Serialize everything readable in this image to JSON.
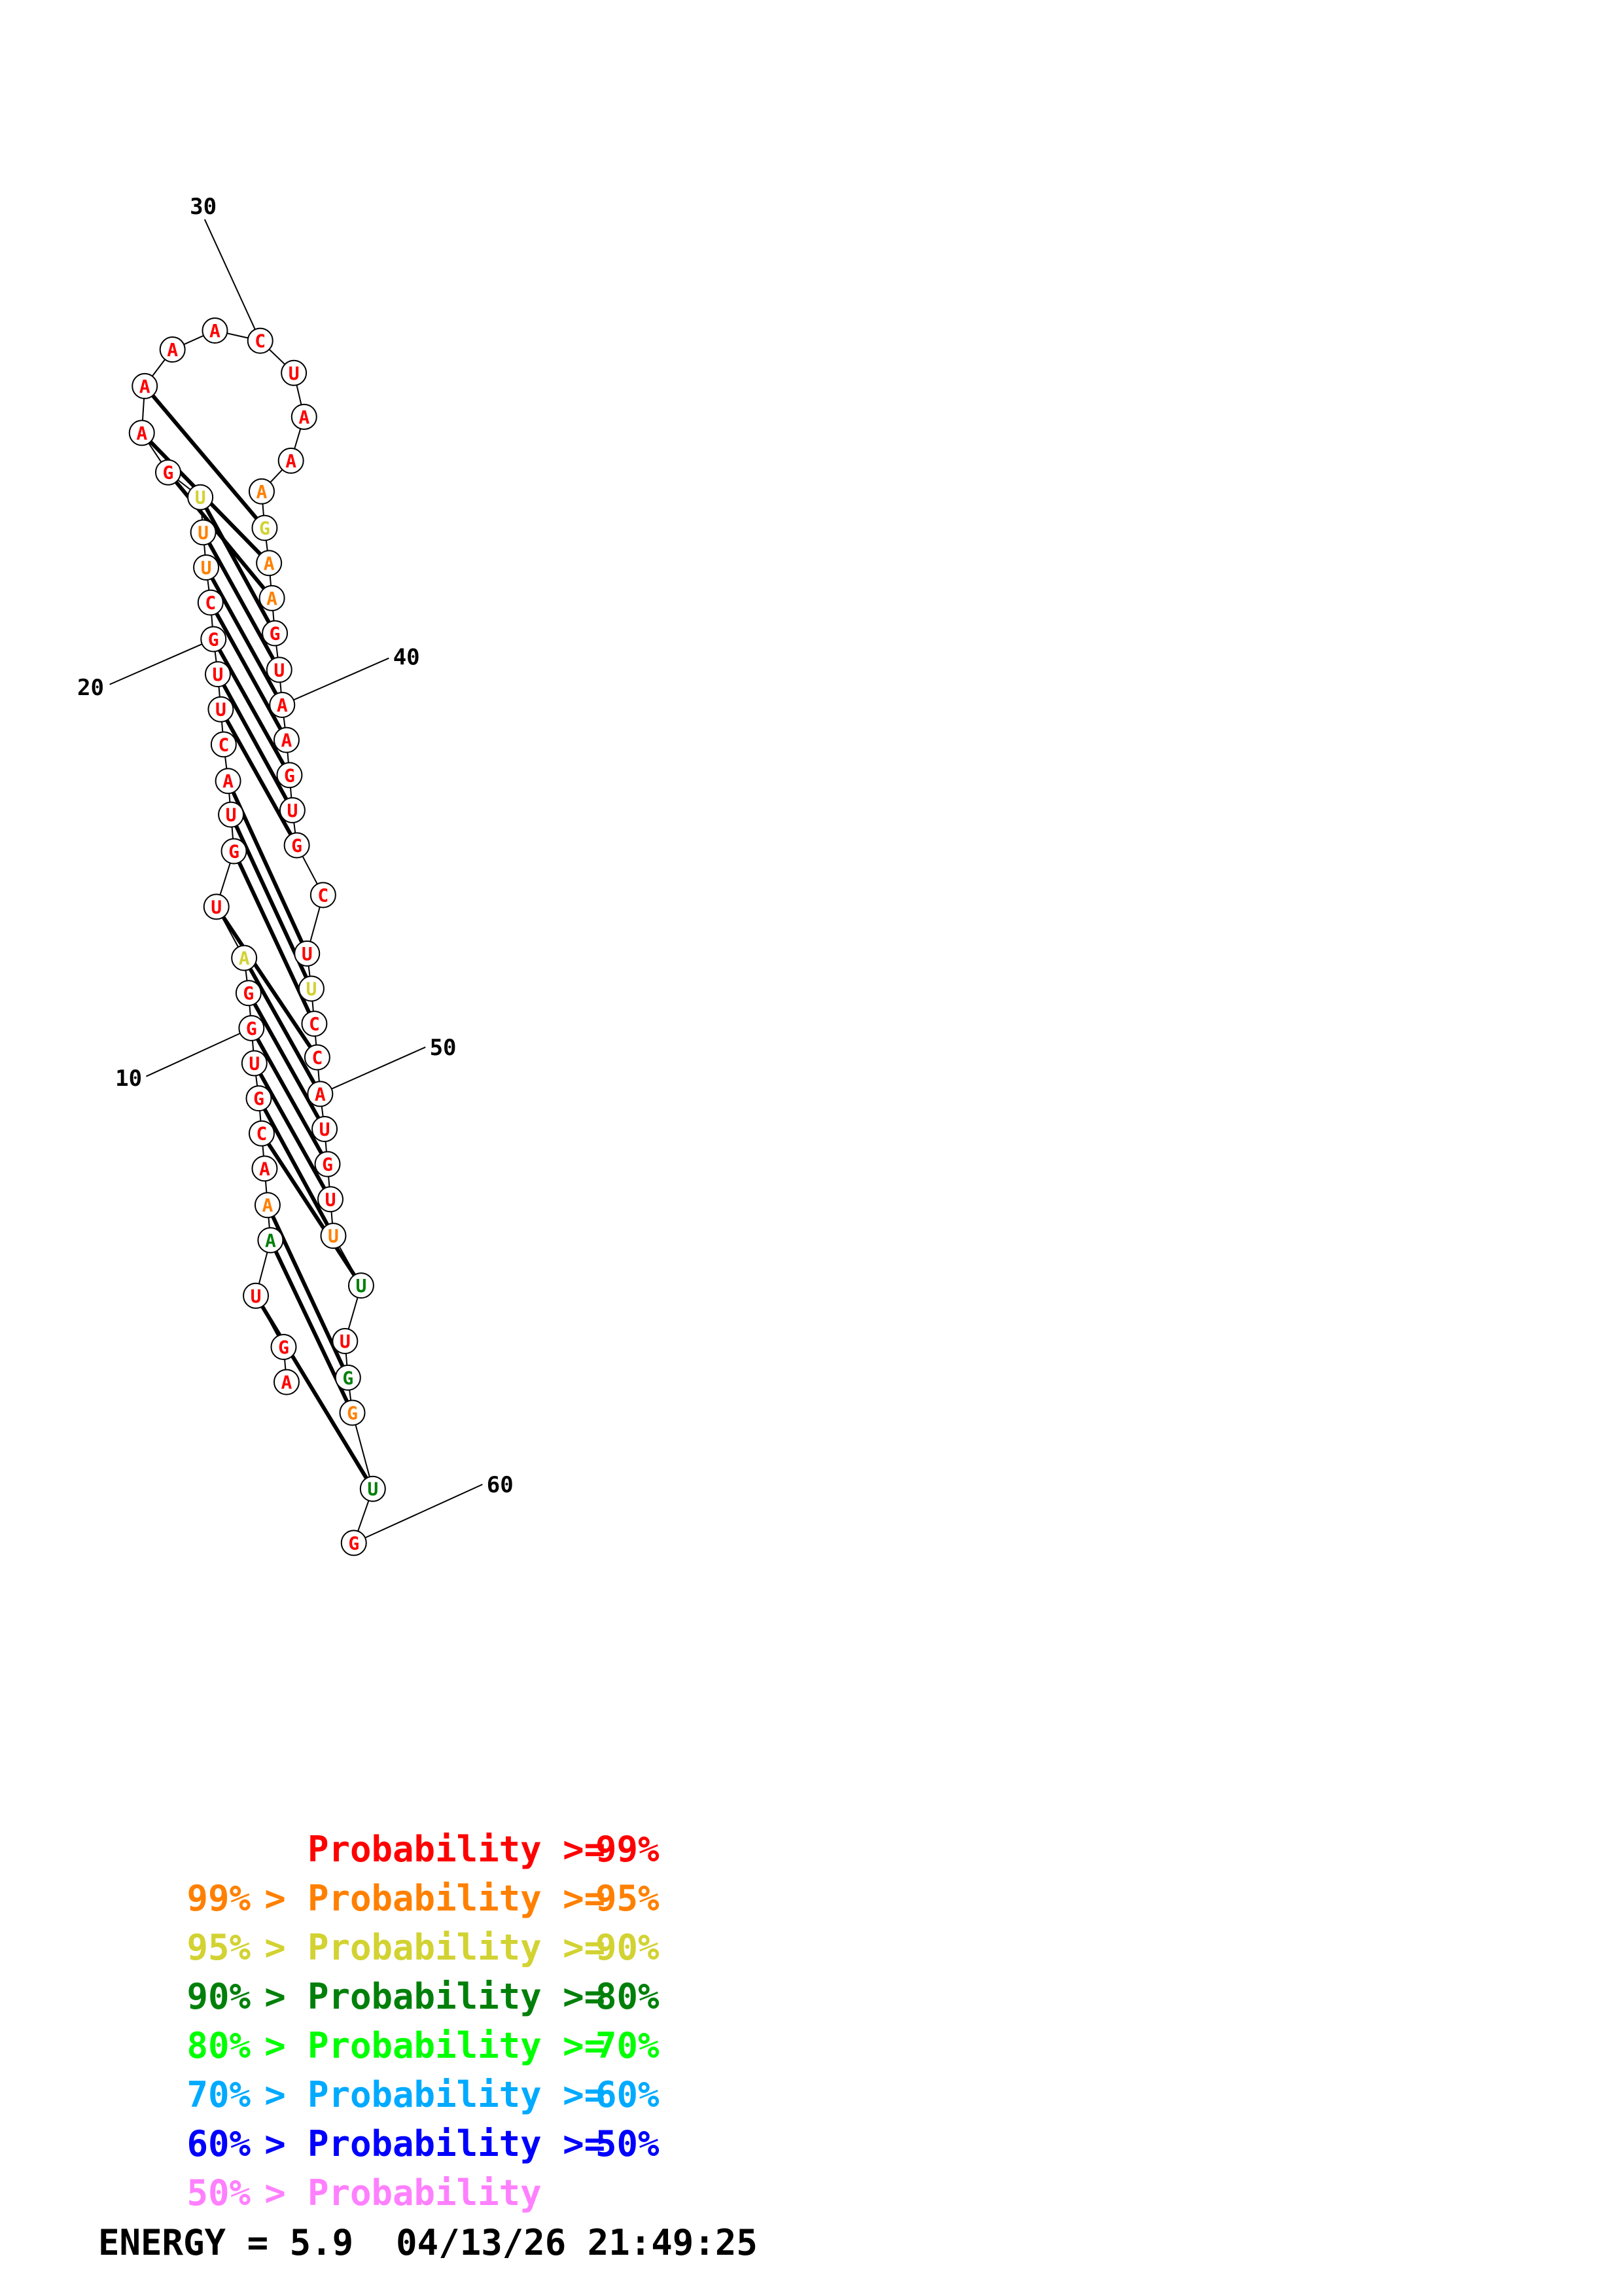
{
  "colors": {
    "p99": "#ff0000",
    "p95": "#ff8000",
    "p90": "#d2d232",
    "p80": "#00800a",
    "p70": "#00ff00",
    "p60": "#00aaff",
    "p50": "#0000ff",
    "plt50": "#ff80ff"
  },
  "structure": {
    "nucleotides": [
      {
        "n": 1,
        "b": "A",
        "c": "p99"
      },
      {
        "n": 2,
        "b": "G",
        "c": "p99"
      },
      {
        "n": 3,
        "b": "U",
        "c": "p99"
      },
      {
        "n": 4,
        "b": "A",
        "c": "p80"
      },
      {
        "n": 5,
        "b": "A",
        "c": "p95"
      },
      {
        "n": 6,
        "b": "A",
        "c": "p99"
      },
      {
        "n": 7,
        "b": "C",
        "c": "p99"
      },
      {
        "n": 8,
        "b": "G",
        "c": "p99"
      },
      {
        "n": 9,
        "b": "U",
        "c": "p99"
      },
      {
        "n": 10,
        "b": "G",
        "c": "p99"
      },
      {
        "n": 11,
        "b": "G",
        "c": "p99"
      },
      {
        "n": 12,
        "b": "A",
        "c": "p90"
      },
      {
        "n": 13,
        "b": "U",
        "c": "p99"
      },
      {
        "n": 14,
        "b": "G",
        "c": "p99"
      },
      {
        "n": 15,
        "b": "U",
        "c": "p99"
      },
      {
        "n": 16,
        "b": "A",
        "c": "p99"
      },
      {
        "n": 17,
        "b": "C",
        "c": "p99"
      },
      {
        "n": 18,
        "b": "U",
        "c": "p99"
      },
      {
        "n": 19,
        "b": "U",
        "c": "p99"
      },
      {
        "n": 20,
        "b": "G",
        "c": "p99"
      },
      {
        "n": 21,
        "b": "C",
        "c": "p99"
      },
      {
        "n": 22,
        "b": "U",
        "c": "p95"
      },
      {
        "n": 23,
        "b": "U",
        "c": "p95"
      },
      {
        "n": 24,
        "b": "U",
        "c": "p90"
      },
      {
        "n": 25,
        "b": "G",
        "c": "p99"
      },
      {
        "n": 26,
        "b": "A",
        "c": "p99"
      },
      {
        "n": 27,
        "b": "A",
        "c": "p99"
      },
      {
        "n": 28,
        "b": "A",
        "c": "p99"
      },
      {
        "n": 29,
        "b": "A",
        "c": "p99"
      },
      {
        "n": 30,
        "b": "C",
        "c": "p99"
      },
      {
        "n": 31,
        "b": "U",
        "c": "p99"
      },
      {
        "n": 32,
        "b": "A",
        "c": "p99"
      },
      {
        "n": 33,
        "b": "A",
        "c": "p99"
      },
      {
        "n": 34,
        "b": "A",
        "c": "p95"
      },
      {
        "n": 35,
        "b": "G",
        "c": "p90"
      },
      {
        "n": 36,
        "b": "A",
        "c": "p95"
      },
      {
        "n": 37,
        "b": "A",
        "c": "p95"
      },
      {
        "n": 38,
        "b": "G",
        "c": "p99"
      },
      {
        "n": 39,
        "b": "U",
        "c": "p99"
      },
      {
        "n": 40,
        "b": "A",
        "c": "p99"
      },
      {
        "n": 41,
        "b": "A",
        "c": "p99"
      },
      {
        "n": 42,
        "b": "G",
        "c": "p99"
      },
      {
        "n": 43,
        "b": "U",
        "c": "p99"
      },
      {
        "n": 44,
        "b": "G",
        "c": "p99"
      },
      {
        "n": 45,
        "b": "C",
        "c": "p99"
      },
      {
        "n": 46,
        "b": "U",
        "c": "p99"
      },
      {
        "n": 47,
        "b": "U",
        "c": "p90"
      },
      {
        "n": 48,
        "b": "C",
        "c": "p99"
      },
      {
        "n": 49,
        "b": "C",
        "c": "p99"
      },
      {
        "n": 50,
        "b": "A",
        "c": "p99"
      },
      {
        "n": 51,
        "b": "U",
        "c": "p99"
      },
      {
        "n": 52,
        "b": "G",
        "c": "p99"
      },
      {
        "n": 53,
        "b": "U",
        "c": "p99"
      },
      {
        "n": 54,
        "b": "U",
        "c": "p95"
      },
      {
        "n": 55,
        "b": "U",
        "c": "p80"
      },
      {
        "n": 56,
        "b": "U",
        "c": "p99"
      },
      {
        "n": 57,
        "b": "G",
        "c": "p80"
      },
      {
        "n": 58,
        "b": "G",
        "c": "p95"
      },
      {
        "n": 59,
        "b": "U",
        "c": "p80"
      },
      {
        "n": 60,
        "b": "G",
        "c": "p99"
      }
    ],
    "pairs": [
      [
        3,
        59
      ],
      [
        4,
        58
      ],
      [
        5,
        57
      ],
      [
        7,
        55
      ],
      [
        8,
        54
      ],
      [
        9,
        53
      ],
      [
        10,
        52
      ],
      [
        11,
        51
      ],
      [
        12,
        50
      ],
      [
        13,
        49
      ],
      [
        14,
        48
      ],
      [
        15,
        47
      ],
      [
        16,
        46
      ],
      [
        18,
        44
      ],
      [
        19,
        43
      ],
      [
        20,
        42
      ],
      [
        21,
        41
      ],
      [
        22,
        40
      ],
      [
        23,
        39
      ],
      [
        24,
        38
      ],
      [
        25,
        37
      ],
      [
        26,
        36
      ],
      [
        27,
        35
      ]
    ],
    "number_labels": [
      "10",
      "20",
      "30",
      "40",
      "50",
      "60"
    ]
  },
  "legend": [
    {
      "left": "",
      "arrow": "",
      "mid": "Probability",
      "op": ">=",
      "right": "99%",
      "c": "p99"
    },
    {
      "left": "99%",
      "arrow": ">",
      "mid": "Probability",
      "op": ">=",
      "right": "95%",
      "c": "p95"
    },
    {
      "left": "95%",
      "arrow": ">",
      "mid": "Probability",
      "op": ">=",
      "right": "90%",
      "c": "p90"
    },
    {
      "left": "90%",
      "arrow": ">",
      "mid": "Probability",
      "op": ">=",
      "right": "80%",
      "c": "p80"
    },
    {
      "left": "80%",
      "arrow": ">",
      "mid": "Probability",
      "op": ">=",
      "right": "70%",
      "c": "p70"
    },
    {
      "left": "70%",
      "arrow": ">",
      "mid": "Probability",
      "op": ">=",
      "right": "60%",
      "c": "p60"
    },
    {
      "left": "60%",
      "arrow": ">",
      "mid": "Probability",
      "op": ">=",
      "right": "50%",
      "c": "p50"
    },
    {
      "left": "50%",
      "arrow": ">",
      "mid": "Probability",
      "op": "",
      "right": "",
      "c": "plt50"
    }
  ],
  "footer": {
    "energy_label": "ENERGY = 5.9",
    "timestamp": "04/13/26 21:49:25"
  }
}
